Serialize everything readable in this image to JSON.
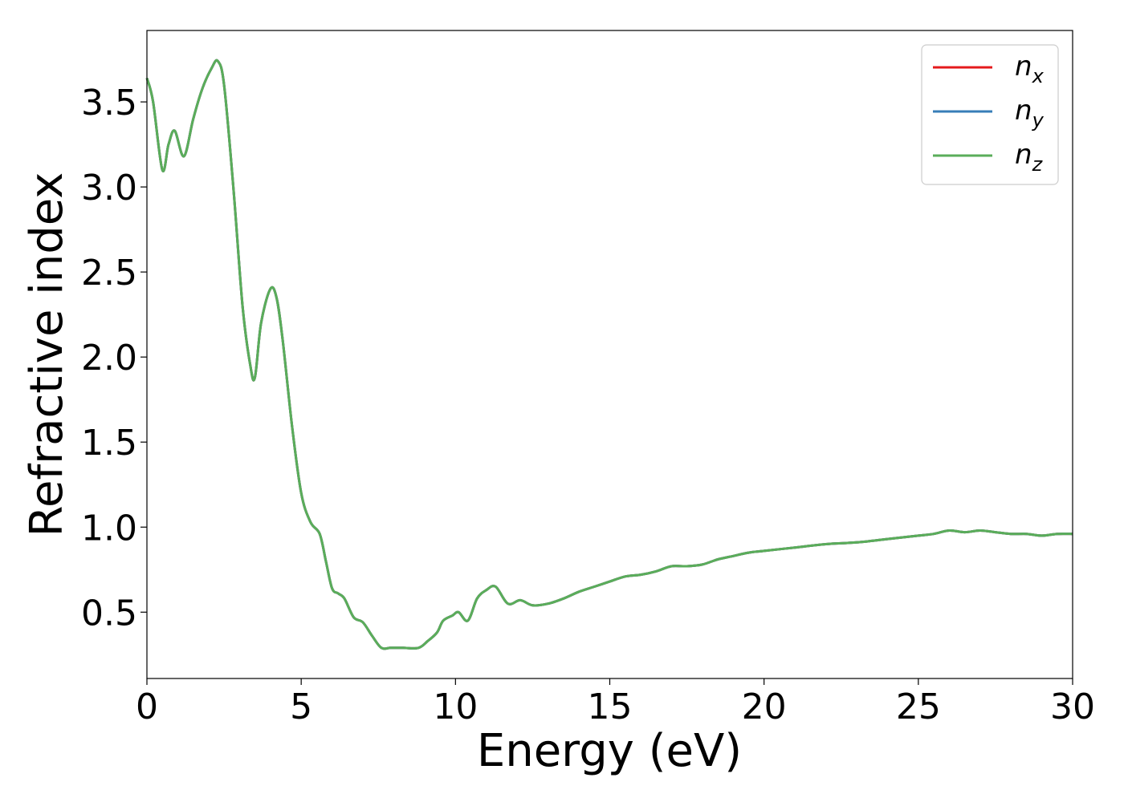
{
  "chart_data": {
    "type": "line",
    "xlabel": "Energy (eV)",
    "ylabel": "Refractive index",
    "xlim": [
      0,
      30
    ],
    "ylim": [
      0.11,
      3.92
    ],
    "x_ticks": [
      0,
      5,
      10,
      15,
      20,
      25,
      30
    ],
    "x_tick_labels": [
      "0",
      "5",
      "10",
      "15",
      "20",
      "25",
      "30"
    ],
    "y_ticks": [
      0.5,
      1.0,
      1.5,
      2.0,
      2.5,
      3.0,
      3.5
    ],
    "y_tick_labels": [
      "0.5",
      "1.0",
      "1.5",
      "2.0",
      "2.5",
      "3.0",
      "3.5"
    ],
    "grid": false,
    "legend_position": "top-right",
    "series": [
      {
        "name": "n_x",
        "base": "n",
        "sub": "x",
        "color": "#e41a1c",
        "x": [
          0,
          0.2,
          0.5,
          0.7,
          0.9,
          1.2,
          1.5,
          1.8,
          2.1,
          2.3,
          2.5,
          2.8,
          3.1,
          3.35,
          3.5,
          3.7,
          4.0,
          4.2,
          4.4,
          4.7,
          5.0,
          5.3,
          5.6,
          5.8,
          6.0,
          6.2,
          6.4,
          6.7,
          7.0,
          7.3,
          7.6,
          7.9,
          8.3,
          8.8,
          9.1,
          9.4,
          9.6,
          9.9,
          10.1,
          10.4,
          10.7,
          11.0,
          11.3,
          11.7,
          12.1,
          12.5,
          13.0,
          13.5,
          14.0,
          14.5,
          15.0,
          15.5,
          16.0,
          16.5,
          17.0,
          17.5,
          18.0,
          18.5,
          19.0,
          19.5,
          20.0,
          21.0,
          22.0,
          23.0,
          24.0,
          25.0,
          25.5,
          26.0,
          26.5,
          27.0,
          27.5,
          28.0,
          28.5,
          29.0,
          29.5,
          30.0
        ],
        "values": [
          3.64,
          3.5,
          3.1,
          3.25,
          3.33,
          3.18,
          3.4,
          3.58,
          3.7,
          3.74,
          3.6,
          3.0,
          2.3,
          1.95,
          1.88,
          2.2,
          2.4,
          2.35,
          2.1,
          1.6,
          1.2,
          1.03,
          0.96,
          0.8,
          0.64,
          0.61,
          0.58,
          0.47,
          0.44,
          0.36,
          0.29,
          0.29,
          0.29,
          0.29,
          0.33,
          0.38,
          0.45,
          0.48,
          0.5,
          0.45,
          0.58,
          0.63,
          0.65,
          0.55,
          0.57,
          0.54,
          0.55,
          0.58,
          0.62,
          0.65,
          0.68,
          0.71,
          0.72,
          0.74,
          0.77,
          0.77,
          0.78,
          0.81,
          0.83,
          0.85,
          0.86,
          0.88,
          0.9,
          0.91,
          0.93,
          0.95,
          0.96,
          0.98,
          0.97,
          0.98,
          0.97,
          0.96,
          0.96,
          0.95,
          0.96,
          0.96
        ]
      },
      {
        "name": "n_y",
        "base": "n",
        "sub": "y",
        "color": "#377eb8",
        "x": [
          0,
          0.2,
          0.5,
          0.7,
          0.9,
          1.2,
          1.5,
          1.8,
          2.1,
          2.3,
          2.5,
          2.8,
          3.1,
          3.35,
          3.5,
          3.7,
          4.0,
          4.2,
          4.4,
          4.7,
          5.0,
          5.3,
          5.6,
          5.8,
          6.0,
          6.2,
          6.4,
          6.7,
          7.0,
          7.3,
          7.6,
          7.9,
          8.3,
          8.8,
          9.1,
          9.4,
          9.6,
          9.9,
          10.1,
          10.4,
          10.7,
          11.0,
          11.3,
          11.7,
          12.1,
          12.5,
          13.0,
          13.5,
          14.0,
          14.5,
          15.0,
          15.5,
          16.0,
          16.5,
          17.0,
          17.5,
          18.0,
          18.5,
          19.0,
          19.5,
          20.0,
          21.0,
          22.0,
          23.0,
          24.0,
          25.0,
          25.5,
          26.0,
          26.5,
          27.0,
          27.5,
          28.0,
          28.5,
          29.0,
          29.5,
          30.0
        ],
        "values": [
          3.64,
          3.5,
          3.1,
          3.25,
          3.33,
          3.18,
          3.4,
          3.58,
          3.7,
          3.74,
          3.6,
          3.0,
          2.3,
          1.95,
          1.88,
          2.2,
          2.4,
          2.35,
          2.1,
          1.6,
          1.2,
          1.03,
          0.96,
          0.8,
          0.64,
          0.61,
          0.58,
          0.47,
          0.44,
          0.36,
          0.29,
          0.29,
          0.29,
          0.29,
          0.33,
          0.38,
          0.45,
          0.48,
          0.5,
          0.45,
          0.58,
          0.63,
          0.65,
          0.55,
          0.57,
          0.54,
          0.55,
          0.58,
          0.62,
          0.65,
          0.68,
          0.71,
          0.72,
          0.74,
          0.77,
          0.77,
          0.78,
          0.81,
          0.83,
          0.85,
          0.86,
          0.88,
          0.9,
          0.91,
          0.93,
          0.95,
          0.96,
          0.98,
          0.97,
          0.98,
          0.97,
          0.96,
          0.96,
          0.95,
          0.96,
          0.96
        ]
      },
      {
        "name": "n_z",
        "base": "n",
        "sub": "z",
        "color": "#5aad5a",
        "x": [
          0,
          0.2,
          0.5,
          0.7,
          0.9,
          1.2,
          1.5,
          1.8,
          2.1,
          2.3,
          2.5,
          2.8,
          3.1,
          3.35,
          3.5,
          3.7,
          4.0,
          4.2,
          4.4,
          4.7,
          5.0,
          5.3,
          5.6,
          5.8,
          6.0,
          6.2,
          6.4,
          6.7,
          7.0,
          7.3,
          7.6,
          7.9,
          8.3,
          8.8,
          9.1,
          9.4,
          9.6,
          9.9,
          10.1,
          10.4,
          10.7,
          11.0,
          11.3,
          11.7,
          12.1,
          12.5,
          13.0,
          13.5,
          14.0,
          14.5,
          15.0,
          15.5,
          16.0,
          16.5,
          17.0,
          17.5,
          18.0,
          18.5,
          19.0,
          19.5,
          20.0,
          21.0,
          22.0,
          23.0,
          24.0,
          25.0,
          25.5,
          26.0,
          26.5,
          27.0,
          27.5,
          28.0,
          28.5,
          29.0,
          29.5,
          30.0
        ],
        "values": [
          3.64,
          3.5,
          3.1,
          3.25,
          3.33,
          3.18,
          3.4,
          3.58,
          3.7,
          3.74,
          3.6,
          3.0,
          2.3,
          1.95,
          1.88,
          2.2,
          2.4,
          2.35,
          2.1,
          1.6,
          1.2,
          1.03,
          0.96,
          0.8,
          0.64,
          0.61,
          0.58,
          0.47,
          0.44,
          0.36,
          0.29,
          0.29,
          0.29,
          0.29,
          0.33,
          0.38,
          0.45,
          0.48,
          0.5,
          0.45,
          0.58,
          0.63,
          0.65,
          0.55,
          0.57,
          0.54,
          0.55,
          0.58,
          0.62,
          0.65,
          0.68,
          0.71,
          0.72,
          0.74,
          0.77,
          0.77,
          0.78,
          0.81,
          0.83,
          0.85,
          0.86,
          0.88,
          0.9,
          0.91,
          0.93,
          0.95,
          0.96,
          0.98,
          0.97,
          0.98,
          0.97,
          0.96,
          0.96,
          0.95,
          0.96,
          0.96
        ]
      }
    ]
  }
}
